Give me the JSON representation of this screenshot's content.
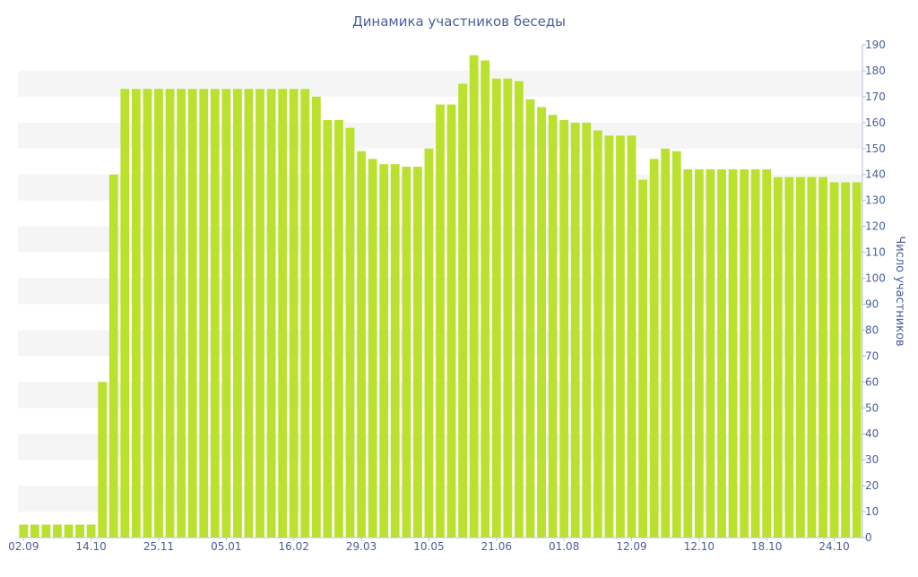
{
  "chart_data": {
    "type": "bar",
    "title": "Динамика участников беседы",
    "ylabel": "Число участников",
    "xlabel": "",
    "ylim": [
      0,
      190
    ],
    "ytick_step": 10,
    "y_axis_side": "right",
    "grid": "alternating horizontal bands",
    "legend": "none",
    "colors": {
      "bar": "#bbe12f",
      "text": "#4a5e9c",
      "band": "#f5f5f5",
      "axis": "#b7bfd6"
    },
    "x_tick_labels": [
      {
        "index": 0,
        "label": "02.09"
      },
      {
        "index": 6,
        "label": "14.10"
      },
      {
        "index": 12,
        "label": "25.11"
      },
      {
        "index": 18,
        "label": "05.01"
      },
      {
        "index": 24,
        "label": "16.02"
      },
      {
        "index": 30,
        "label": "29.03"
      },
      {
        "index": 36,
        "label": "10.05"
      },
      {
        "index": 42,
        "label": "21.06"
      },
      {
        "index": 48,
        "label": "01.08"
      },
      {
        "index": 54,
        "label": "12.09"
      },
      {
        "index": 60,
        "label": "12.10"
      },
      {
        "index": 66,
        "label": "18.10"
      },
      {
        "index": 72,
        "label": "24.10"
      }
    ],
    "values": [
      5,
      5,
      5,
      5,
      5,
      5,
      5,
      60,
      140,
      173,
      173,
      173,
      173,
      173,
      173,
      173,
      173,
      173,
      173,
      173,
      173,
      173,
      173,
      173,
      173,
      173,
      170,
      161,
      161,
      158,
      149,
      146,
      144,
      144,
      143,
      143,
      150,
      167,
      167,
      175,
      186,
      184,
      177,
      177,
      176,
      169,
      166,
      163,
      161,
      160,
      160,
      157,
      155,
      155,
      155,
      138,
      146,
      150,
      149,
      142,
      142,
      142,
      142,
      142,
      142,
      142,
      142,
      139,
      139,
      139,
      139,
      139,
      137,
      137,
      137
    ]
  }
}
